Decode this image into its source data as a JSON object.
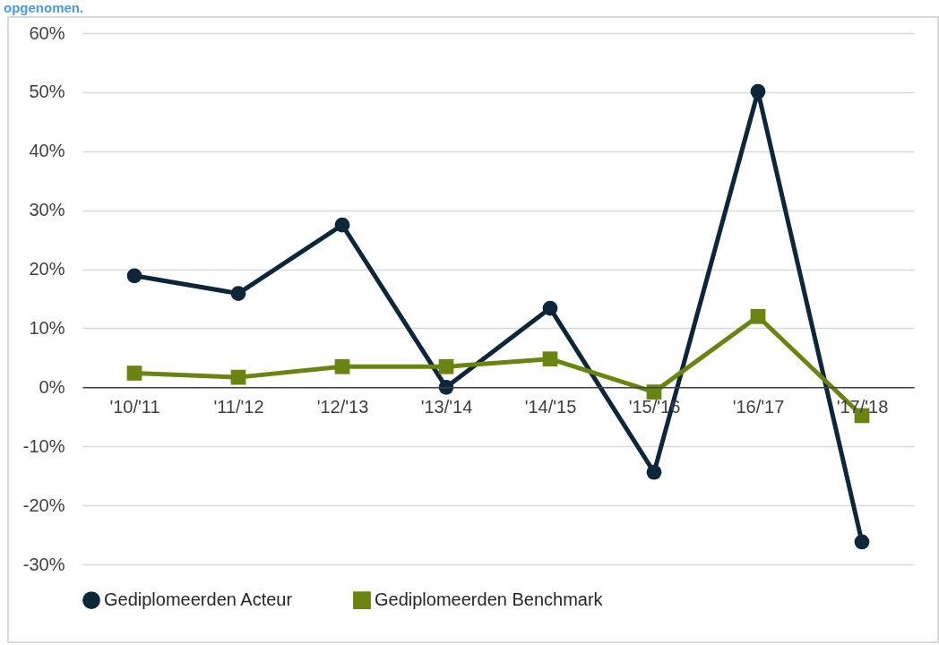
{
  "chart_data": {
    "type": "line",
    "annotations": [
      "opgenomen."
    ],
    "categories": [
      "'10/'11",
      "'11/'12",
      "'12/'13",
      "'13/'14",
      "'14/'15",
      "'15/'16",
      "'16/'17",
      "'17/'18"
    ],
    "series": [
      {
        "name": "Gediplomeerden Acteur",
        "color": "#0d263a",
        "marker": "circle",
        "values": [
          18.9,
          15.9,
          27.5,
          0,
          13.4,
          -14.4,
          50.1,
          -26.2
        ]
      },
      {
        "name": "Gediplomeerden Benchmark",
        "color": "#6b8411",
        "marker": "square",
        "values": [
          2.4,
          1.7,
          3.5,
          3.5,
          4.8,
          -0.8,
          12.0,
          -4.8
        ]
      }
    ],
    "ylim": [
      -30,
      60
    ],
    "yticks": [
      {
        "value": -30,
        "label": "-30%"
      },
      {
        "value": -20,
        "label": "-20%"
      },
      {
        "value": -10,
        "label": "-10%"
      },
      {
        "value": 0,
        "label": "0%"
      },
      {
        "value": 10,
        "label": "10%"
      },
      {
        "value": 20,
        "label": "20%"
      },
      {
        "value": 30,
        "label": "30%"
      },
      {
        "value": 40,
        "label": "40%"
      },
      {
        "value": 50,
        "label": "50%"
      },
      {
        "value": 60,
        "label": "60%"
      }
    ],
    "grid": "y",
    "line_style": "solid",
    "legend": "bottom"
  }
}
